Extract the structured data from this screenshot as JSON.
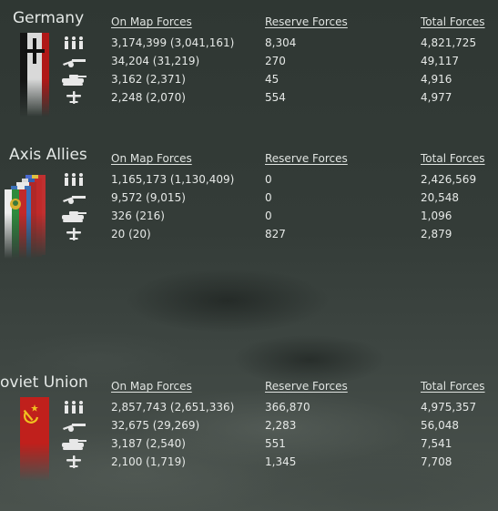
{
  "headers": {
    "on_map": "On Map Forces",
    "reserve": "Reserve Forces",
    "total": "Total Forces"
  },
  "factions": [
    {
      "name": "Germany",
      "rows": [
        {
          "unit": "infantry-icon",
          "on_map": "3,174,399 (3,041,161)",
          "reserve": "8,304",
          "total": "4,821,725"
        },
        {
          "unit": "artillery-icon",
          "on_map": "34,204 (31,219)",
          "reserve": "270",
          "total": "49,117"
        },
        {
          "unit": "tank-icon",
          "on_map": "3,162 (2,371)",
          "reserve": "45",
          "total": "4,916"
        },
        {
          "unit": "aircraft-icon",
          "on_map": "2,248 (2,070)",
          "reserve": "554",
          "total": "4,977"
        }
      ]
    },
    {
      "name": "Axis Allies",
      "rows": [
        {
          "unit": "infantry-icon",
          "on_map": "1,165,173 (1,130,409)",
          "reserve": "0",
          "total": "2,426,569"
        },
        {
          "unit": "artillery-icon",
          "on_map": "9,572 (9,015)",
          "reserve": "0",
          "total": "20,548"
        },
        {
          "unit": "tank-icon",
          "on_map": "326 (216)",
          "reserve": "0",
          "total": "1,096"
        },
        {
          "unit": "aircraft-icon",
          "on_map": "20 (20)",
          "reserve": "827",
          "total": "2,879"
        }
      ]
    },
    {
      "name": "oviet Union",
      "rows": [
        {
          "unit": "infantry-icon",
          "on_map": "2,857,743 (2,651,336)",
          "reserve": "366,870",
          "total": "4,975,357"
        },
        {
          "unit": "artillery-icon",
          "on_map": "32,675 (29,269)",
          "reserve": "2,283",
          "total": "56,048"
        },
        {
          "unit": "tank-icon",
          "on_map": "3,187 (2,540)",
          "reserve": "551",
          "total": "7,541"
        },
        {
          "unit": "aircraft-icon",
          "on_map": "2,100 (1,719)",
          "reserve": "1,345",
          "total": "7,708"
        }
      ]
    }
  ]
}
